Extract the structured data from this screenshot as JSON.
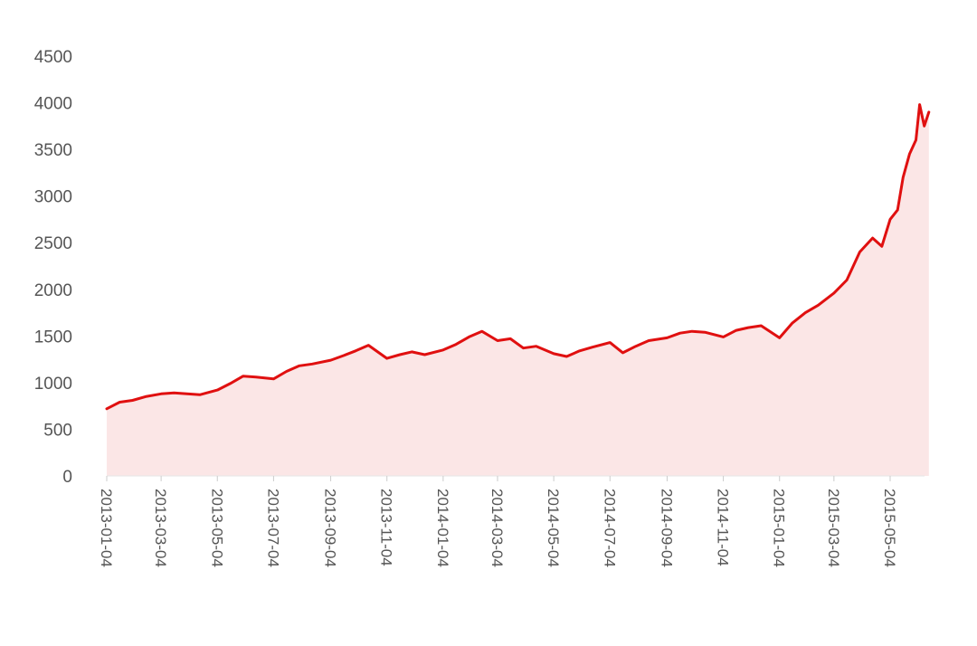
{
  "chart_data": {
    "type": "area",
    "title": "",
    "xlabel": "",
    "ylabel": "",
    "ylim": [
      0,
      4500
    ],
    "y_ticks": [
      "0",
      "500",
      "1000",
      "1500",
      "2000",
      "2500",
      "3000",
      "3500",
      "4000",
      "4500"
    ],
    "x_tick_labels": [
      "2013-01-04",
      "2013-03-04",
      "2013-05-04",
      "2013-07-04",
      "2013-09-04",
      "2013-11-04",
      "2014-01-04",
      "2014-03-04",
      "2014-05-04",
      "2014-07-04",
      "2014-09-04",
      "2014-11-04",
      "2015-01-04",
      "2015-03-04",
      "2015-05-04"
    ],
    "grid": false,
    "legend": "none",
    "colors": {
      "line": "#e01010",
      "fill": "#fbe6e6",
      "axis": "#e6e6e6",
      "text": "#555555"
    },
    "x": [
      "2013-01-04",
      "2013-01-18",
      "2013-02-01",
      "2013-02-15",
      "2013-03-04",
      "2013-03-18",
      "2013-04-01",
      "2013-04-15",
      "2013-05-04",
      "2013-05-18",
      "2013-06-01",
      "2013-06-15",
      "2013-07-04",
      "2013-07-18",
      "2013-08-01",
      "2013-08-15",
      "2013-09-04",
      "2013-09-18",
      "2013-10-01",
      "2013-10-15",
      "2013-11-04",
      "2013-11-18",
      "2013-12-01",
      "2013-12-15",
      "2014-01-04",
      "2014-01-18",
      "2014-02-01",
      "2014-02-15",
      "2014-03-04",
      "2014-03-18",
      "2014-04-01",
      "2014-04-15",
      "2014-05-04",
      "2014-05-18",
      "2014-06-01",
      "2014-06-15",
      "2014-07-04",
      "2014-07-18",
      "2014-08-01",
      "2014-08-15",
      "2014-09-04",
      "2014-09-18",
      "2014-10-01",
      "2014-10-15",
      "2014-11-04",
      "2014-11-18",
      "2014-12-01",
      "2014-12-15",
      "2015-01-04",
      "2015-01-18",
      "2015-02-01",
      "2015-02-15",
      "2015-03-04",
      "2015-03-18",
      "2015-04-01",
      "2015-04-15",
      "2015-04-25",
      "2015-05-04",
      "2015-05-12",
      "2015-05-18",
      "2015-05-25",
      "2015-06-01",
      "2015-06-05",
      "2015-06-10",
      "2015-06-15"
    ],
    "values": [
      720,
      790,
      810,
      850,
      880,
      890,
      880,
      870,
      920,
      990,
      1070,
      1060,
      1040,
      1120,
      1180,
      1200,
      1240,
      1290,
      1340,
      1400,
      1260,
      1300,
      1330,
      1300,
      1350,
      1410,
      1490,
      1550,
      1450,
      1470,
      1370,
      1390,
      1310,
      1280,
      1340,
      1380,
      1430,
      1320,
      1390,
      1450,
      1480,
      1530,
      1550,
      1540,
      1490,
      1560,
      1590,
      1610,
      1480,
      1640,
      1750,
      1830,
      1960,
      2100,
      2400,
      2550,
      2460,
      2750,
      2850,
      3200,
      3450,
      3600,
      3980,
      3750,
      3900
    ]
  }
}
